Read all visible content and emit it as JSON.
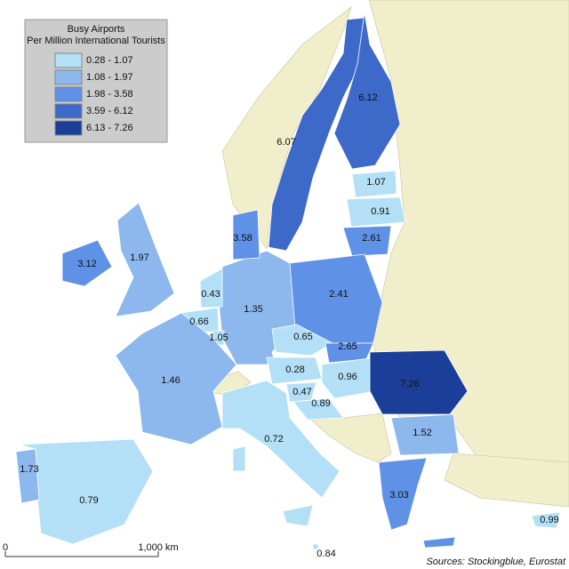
{
  "legend": {
    "title_lines": [
      "Busy Airports",
      "Per Million International Tourists"
    ],
    "classes": [
      {
        "label": "0.28 - 1.07",
        "color": "#b3e0f6"
      },
      {
        "label": "1.08 - 1.97",
        "color": "#8cb8ee"
      },
      {
        "label": "1.98 - 3.58",
        "color": "#5f91e6"
      },
      {
        "label": "3.59 - 6.12",
        "color": "#3d69c9"
      },
      {
        "label": "6.13 - 7.26",
        "color": "#1b3e98"
      }
    ]
  },
  "regions": [
    {
      "value": 6.07,
      "color": "#3d69c9"
    },
    {
      "value": 6.12,
      "color": "#3d69c9"
    },
    {
      "value": 1.07,
      "color": "#b3e0f6"
    },
    {
      "value": 0.91,
      "color": "#b3e0f6"
    },
    {
      "value": 2.61,
      "color": "#5f91e6"
    },
    {
      "value": 2.41,
      "color": "#5f91e6"
    },
    {
      "value": 1.35,
      "color": "#8cb8ee"
    },
    {
      "value": 3.58,
      "color": "#5f91e6"
    },
    {
      "value": 0.43,
      "color": "#b3e0f6"
    },
    {
      "value": 0.66,
      "color": "#b3e0f6"
    },
    {
      "value": 1.05,
      "color": "#b3e0f6"
    },
    {
      "value": 1.46,
      "color": "#8cb8ee"
    },
    {
      "value": 1.97,
      "color": "#8cb8ee"
    },
    {
      "value": 3.12,
      "color": "#5f91e6"
    },
    {
      "value": 0.79,
      "color": "#b3e0f6"
    },
    {
      "value": 1.73,
      "color": "#8cb8ee"
    },
    {
      "value": 0.72,
      "color": "#b3e0f6"
    },
    {
      "value": 0.65,
      "color": "#b3e0f6"
    },
    {
      "value": 2.65,
      "color": "#5f91e6"
    },
    {
      "value": 0.28,
      "color": "#b3e0f6"
    },
    {
      "value": 0.96,
      "color": "#b3e0f6"
    },
    {
      "value": 0.47,
      "color": "#b3e0f6"
    },
    {
      "value": 0.89,
      "color": "#b3e0f6"
    },
    {
      "value": 7.26,
      "color": "#1b3e98"
    },
    {
      "value": 1.52,
      "color": "#8cb8ee"
    },
    {
      "value": 3.03,
      "color": "#5f91e6"
    },
    {
      "value": 0.99,
      "color": "#b3e0f6"
    },
    {
      "value": 0.84,
      "color": "#b3e0f6"
    }
  ],
  "scale_bar": {
    "start": "0",
    "end": "1,000 km"
  },
  "source": "Sources: Stockingblue, Eurostat"
}
